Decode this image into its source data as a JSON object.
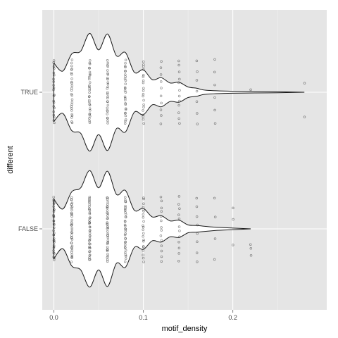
{
  "chart_data": {
    "type": "violin",
    "xlabel": "motif_density",
    "ylabel": "different",
    "x_ticks": [
      0.0,
      0.1,
      0.2
    ],
    "x_tick_labels": [
      "0.0",
      "0.1",
      "0.2"
    ],
    "xlim": [
      -0.013,
      0.305
    ],
    "categories": [
      "TRUE",
      "FALSE"
    ],
    "grid": true,
    "flipped": true,
    "colors": {
      "panel": "#e5e5e5",
      "grid_major": "#ffffff",
      "grid_minor": "#f2f2f2",
      "violin_fill": "#ffffff",
      "violin_stroke": "#1a1a1a",
      "points": "#333333"
    },
    "series": [
      {
        "category": "TRUE",
        "density": [
          [
            0.0,
            0.44
          ],
          [
            0.01,
            0.32
          ],
          [
            0.02,
            0.58
          ],
          [
            0.03,
            0.62
          ],
          [
            0.04,
            0.89
          ],
          [
            0.05,
            0.64
          ],
          [
            0.06,
            0.88
          ],
          [
            0.07,
            0.55
          ],
          [
            0.08,
            0.6
          ],
          [
            0.09,
            0.3
          ],
          [
            0.1,
            0.34
          ],
          [
            0.11,
            0.19
          ],
          [
            0.12,
            0.22
          ],
          [
            0.13,
            0.14
          ],
          [
            0.14,
            0.15
          ],
          [
            0.15,
            0.08
          ],
          [
            0.16,
            0.06
          ],
          [
            0.17,
            0.03
          ],
          [
            0.2,
            0.015
          ],
          [
            0.25,
            0.008
          ],
          [
            0.28,
            0.0
          ]
        ],
        "points": [
          {
            "x": 0.0,
            "n": 22
          },
          {
            "x": 0.02,
            "n": 26
          },
          {
            "x": 0.04,
            "n": 30
          },
          {
            "x": 0.06,
            "n": 28
          },
          {
            "x": 0.08,
            "n": 28
          },
          {
            "x": 0.1,
            "n": 20
          },
          {
            "x": 0.12,
            "n": 10
          },
          {
            "x": 0.14,
            "n": 12
          },
          {
            "x": 0.16,
            "n": 7
          },
          {
            "x": 0.18,
            "n": 6
          },
          {
            "x": 0.22,
            "n": 1
          },
          {
            "x": 0.28,
            "n": 2
          }
        ]
      },
      {
        "category": "FALSE",
        "density": [
          [
            0.0,
            0.45
          ],
          [
            0.01,
            0.3
          ],
          [
            0.02,
            0.56
          ],
          [
            0.03,
            0.62
          ],
          [
            0.04,
            0.88
          ],
          [
            0.05,
            0.62
          ],
          [
            0.06,
            0.87
          ],
          [
            0.07,
            0.52
          ],
          [
            0.08,
            0.58
          ],
          [
            0.09,
            0.28
          ],
          [
            0.1,
            0.31
          ],
          [
            0.11,
            0.18
          ],
          [
            0.12,
            0.2
          ],
          [
            0.13,
            0.12
          ],
          [
            0.14,
            0.13
          ],
          [
            0.15,
            0.06
          ],
          [
            0.16,
            0.05
          ],
          [
            0.18,
            0.025
          ],
          [
            0.2,
            0.012
          ],
          [
            0.22,
            0.0
          ]
        ],
        "points": [
          {
            "x": 0.0,
            "n": 34
          },
          {
            "x": 0.02,
            "n": 38
          },
          {
            "x": 0.04,
            "n": 40
          },
          {
            "x": 0.06,
            "n": 38
          },
          {
            "x": 0.08,
            "n": 34
          },
          {
            "x": 0.1,
            "n": 22
          },
          {
            "x": 0.12,
            "n": 14
          },
          {
            "x": 0.14,
            "n": 12
          },
          {
            "x": 0.16,
            "n": 8
          },
          {
            "x": 0.18,
            "n": 4
          },
          {
            "x": 0.2,
            "n": 3
          },
          {
            "x": 0.22,
            "n": 3
          }
        ]
      }
    ]
  }
}
